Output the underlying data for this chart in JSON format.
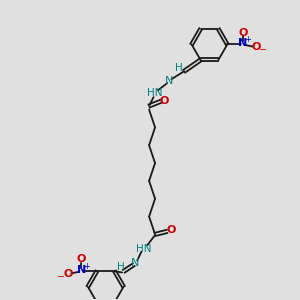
{
  "bg_color": "#e0e0e0",
  "bond_color": "#1a1a1a",
  "nitrogen_color": "#008080",
  "oxygen_color": "#cc0000",
  "blue_n_color": "#0000cc",
  "blue_o_color": "#cc0000",
  "fig_size": [
    3.0,
    3.0
  ],
  "dpi": 100,
  "xlim": [
    0,
    10
  ],
  "ylim": [
    0,
    10
  ]
}
